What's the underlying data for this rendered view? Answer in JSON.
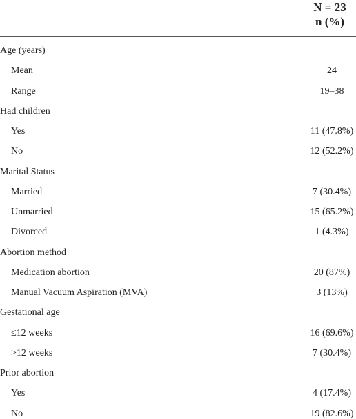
{
  "header": {
    "column_title": "N = 23",
    "column_subtitle": "n (%)"
  },
  "groups": [
    {
      "label": "Age (years)",
      "rows": [
        {
          "label": "Mean",
          "value": "24"
        },
        {
          "label": "Range",
          "value": "19–38"
        }
      ]
    },
    {
      "label": "Had children",
      "rows": [
        {
          "label": "Yes",
          "value": "11 (47.8%)"
        },
        {
          "label": "No",
          "value": "12 (52.2%)"
        }
      ]
    },
    {
      "label": "Marital Status",
      "rows": [
        {
          "label": "Married",
          "value": "7 (30.4%)"
        },
        {
          "label": "Unmarried",
          "value": "15 (65.2%)"
        },
        {
          "label": "Divorced",
          "value": "1 (4.3%)"
        }
      ]
    },
    {
      "label": "Abortion method",
      "rows": [
        {
          "label": "Medication abortion",
          "value": "20 (87%)"
        },
        {
          "label": "Manual Vacuum Aspiration (MVA)",
          "value": "3 (13%)"
        }
      ]
    },
    {
      "label": "Gestational age",
      "rows": [
        {
          "label": "≤12 weeks",
          "value": "16 (69.6%)"
        },
        {
          "label": ">12 weeks",
          "value": "7 (30.4%)"
        }
      ]
    },
    {
      "label": "Prior abortion",
      "rows": [
        {
          "label": "Yes",
          "value": "4 (17.4%)"
        },
        {
          "label": "No",
          "value": "19 (82.6%)"
        }
      ]
    }
  ]
}
